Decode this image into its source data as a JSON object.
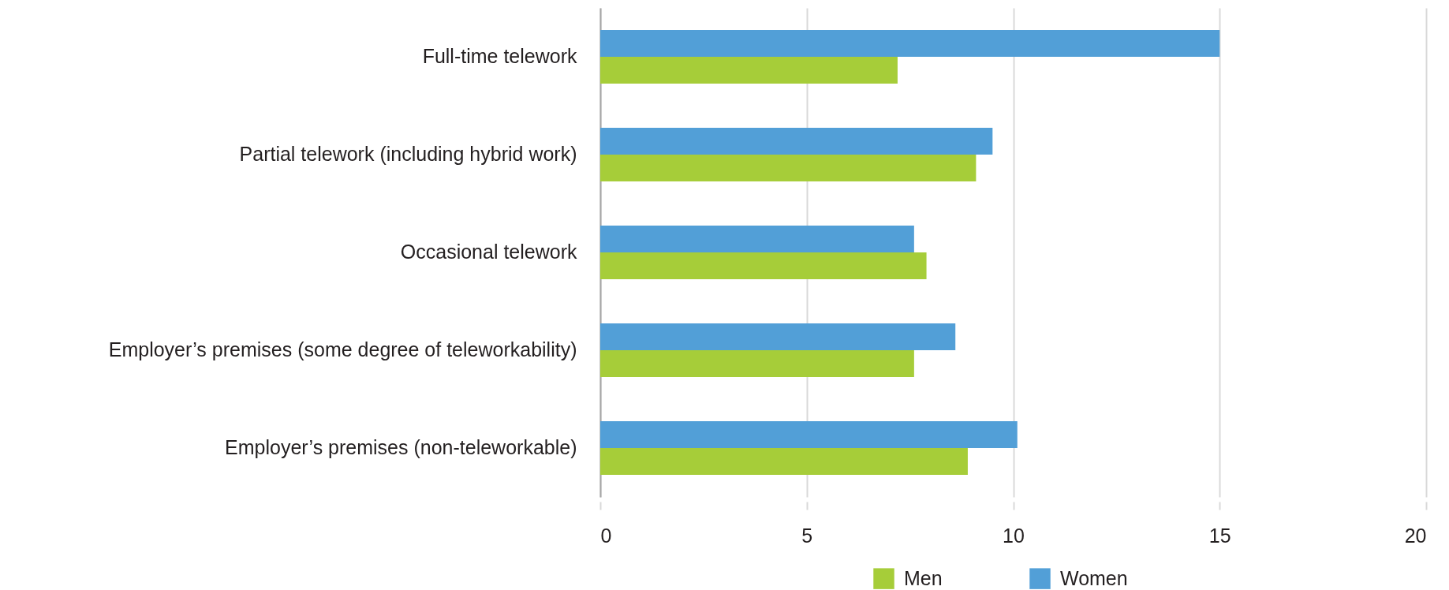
{
  "chart_data": {
    "type": "bar",
    "orientation": "horizontal",
    "categories": [
      "Full-time telework",
      "Partial telework (including hybrid work)",
      "Occasional telework",
      "Employer’s premises (some degree of teleworkability)",
      "Employer’s premises (non-teleworkable)"
    ],
    "series": [
      {
        "name": "Men",
        "color": "#a6cd39",
        "values": [
          7.2,
          9.1,
          7.9,
          7.6,
          8.9
        ]
      },
      {
        "name": "Women",
        "color": "#529fd7",
        "values": [
          15.0,
          9.5,
          7.6,
          8.6,
          10.1
        ]
      }
    ],
    "xlim": [
      0,
      20
    ],
    "xticks": [
      0,
      5,
      10,
      15,
      20
    ],
    "grid": "x",
    "legend": "bottom"
  }
}
